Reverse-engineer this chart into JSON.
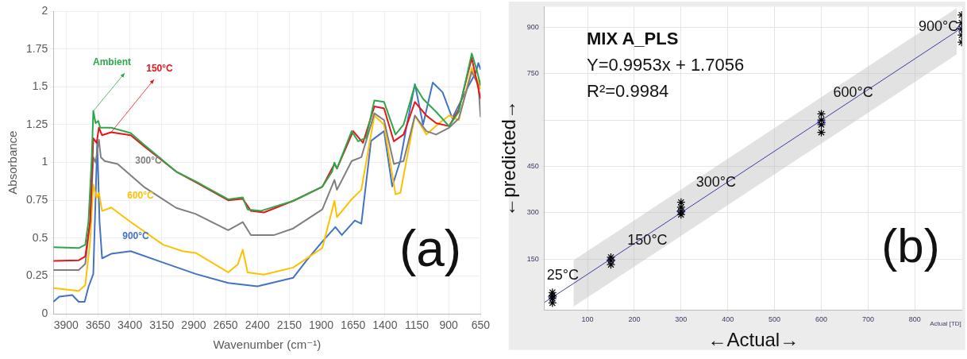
{
  "chart_data": [
    {
      "type": "line",
      "xlabel": "Wavenumber (cm⁻¹)",
      "ylabel": "Absorbance",
      "xlim": [
        4000,
        650
      ],
      "xticks": [
        3900,
        3650,
        3400,
        3150,
        2900,
        2650,
        2400,
        2150,
        1900,
        1650,
        1400,
        1150,
        900,
        650
      ],
      "ylim": [
        0,
        2
      ],
      "yticks": [
        0,
        0.25,
        0.5,
        0.75,
        1,
        1.25,
        1.5,
        1.75,
        2
      ],
      "grid": true,
      "marker": "none",
      "annotations": [
        "(a)"
      ],
      "series": [
        {
          "name": "Ambient",
          "color": "#2ca84a",
          "x": [
            4000,
            3801,
            3750,
            3725,
            3699,
            3687,
            3669,
            3648,
            3633,
            3547,
            3394,
            3292,
            3037,
            2884,
            2629,
            2515,
            2477,
            2375,
            2120,
            1891,
            1814,
            1796,
            1776,
            1661,
            1610,
            1547,
            1483,
            1407,
            1317,
            1254,
            1165,
            1101,
            999,
            897,
            821,
            719,
            680,
            650
          ],
          "values": [
            0.44,
            0.435,
            0.457,
            0.61,
            1.035,
            1.34,
            1.26,
            1.275,
            1.23,
            1.23,
            1.195,
            1.12,
            0.94,
            0.875,
            0.757,
            0.77,
            0.69,
            0.68,
            0.746,
            0.84,
            0.94,
            1.0,
            0.96,
            1.207,
            1.14,
            1.164,
            1.41,
            1.4,
            1.185,
            1.25,
            1.51,
            1.42,
            1.335,
            1.24,
            1.335,
            1.72,
            1.61,
            1.51
          ]
        },
        {
          "name": "150°C",
          "color": "#e8141b",
          "x": [
            4000,
            3801,
            3750,
            3712,
            3687,
            3661,
            3643,
            3618,
            3547,
            3394,
            3292,
            3037,
            2884,
            2629,
            2515,
            2451,
            2349,
            2120,
            1891,
            1796,
            1776,
            1649,
            1572,
            1483,
            1407,
            1330,
            1254,
            1165,
            1075,
            999,
            897,
            821,
            719,
            650
          ],
          "values": [
            0.35,
            0.354,
            0.38,
            0.61,
            1.16,
            1.13,
            1.23,
            1.18,
            1.2,
            1.18,
            1.11,
            0.94,
            0.87,
            0.75,
            0.76,
            0.68,
            0.67,
            0.746,
            0.84,
            0.99,
            0.96,
            1.207,
            1.13,
            1.37,
            1.357,
            1.14,
            1.185,
            1.4,
            1.31,
            1.26,
            1.24,
            1.35,
            1.69,
            1.42
          ]
        },
        {
          "name": "300°C",
          "color": "#7f7f7f",
          "x": [
            4000,
            3801,
            3750,
            3712,
            3687,
            3669,
            3643,
            3628,
            3598,
            3496,
            3292,
            3037,
            2884,
            2629,
            2515,
            2451,
            2273,
            2120,
            1891,
            1796,
            1776,
            1661,
            1585,
            1483,
            1407,
            1330,
            1254,
            1165,
            1075,
            999,
            897,
            821,
            719,
            667,
            650
          ],
          "values": [
            0.29,
            0.29,
            0.33,
            0.61,
            1.035,
            1.0,
            1.15,
            1.035,
            1.01,
            0.99,
            0.84,
            0.7,
            0.66,
            0.553,
            0.607,
            0.52,
            0.52,
            0.564,
            0.69,
            0.885,
            0.82,
            1.01,
            1.035,
            1.325,
            1.28,
            0.99,
            1.01,
            1.31,
            1.207,
            1.185,
            1.23,
            1.29,
            1.6,
            1.51,
            1.3
          ]
        },
        {
          "name": "600°C",
          "color": "#ffc000",
          "x": [
            4000,
            3801,
            3750,
            3712,
            3687,
            3661,
            3643,
            3618,
            3547,
            3394,
            3139,
            2986,
            2884,
            2629,
            2553,
            2515,
            2477,
            2349,
            2120,
            1891,
            1796,
            1776,
            1661,
            1585,
            1483,
            1407,
            1317,
            1279,
            1165,
            1075,
            974,
            897,
            821,
            719,
            667,
            650
          ],
          "values": [
            0.17,
            0.152,
            0.19,
            0.478,
            0.853,
            0.767,
            0.8,
            0.68,
            0.703,
            0.607,
            0.457,
            0.414,
            0.403,
            0.274,
            0.328,
            0.424,
            0.274,
            0.259,
            0.306,
            0.435,
            0.746,
            0.639,
            0.757,
            0.82,
            1.31,
            1.25,
            0.79,
            0.8,
            1.31,
            1.185,
            1.26,
            1.31,
            1.28,
            1.625,
            1.53,
            1.485
          ]
        },
        {
          "name": "900°C",
          "color": "#4472c4",
          "x": [
            4000,
            3954,
            3852,
            3801,
            3755,
            3725,
            3687,
            3656,
            3638,
            3618,
            3547,
            3394,
            3139,
            2884,
            2629,
            2400,
            2120,
            2018,
            1891,
            1789,
            1738,
            1636,
            1585,
            1509,
            1407,
            1343,
            1279,
            1228,
            1165,
            1101,
            1025,
            948,
            872,
            808,
            744,
            688,
            667,
            650
          ],
          "values": [
            0.08,
            0.114,
            0.124,
            0.08,
            0.08,
            0.178,
            0.264,
            1.14,
            0.607,
            0.367,
            0.397,
            0.414,
            0.339,
            0.264,
            0.204,
            0.182,
            0.238,
            0.349,
            0.478,
            0.574,
            0.521,
            0.617,
            0.596,
            1.143,
            1.207,
            0.842,
            1.014,
            1.25,
            1.518,
            1.25,
            1.528,
            1.464,
            1.293,
            1.4,
            1.507,
            1.593,
            1.657,
            1.614
          ]
        }
      ]
    },
    {
      "type": "scatter",
      "xlabel": "←Actual→",
      "ylabel": "←predicted→",
      "xlim": [
        8,
        901
      ],
      "xticks": [
        100,
        200,
        300,
        400,
        500,
        600,
        700,
        800
      ],
      "ylim": [
        -15,
        967
      ],
      "yticks": [
        150,
        300,
        450,
        {
          "value": 600,
          "label": null
        },
        750,
        900
      ],
      "grid": true,
      "annotations": [
        "MIX A_PLS",
        "Y=0.9953x + 1.7056",
        "R²=0.9984",
        {
          "text": "25°C",
          "x": 25,
          "y": 25
        },
        {
          "text": "150°C",
          "x": 150,
          "y": 145
        },
        {
          "text": "300°C",
          "x": 300,
          "y": 310
        },
        {
          "text": "600°C",
          "x": 600,
          "y": 590
        },
        {
          "text": "900°C",
          "x": 900,
          "y": 900
        },
        "(b)",
        "Actual [TD]"
      ],
      "series": [
        {
          "color": "#000000",
          "marker": "cross",
          "x": [
            25,
            25,
            25,
            25,
            150,
            150,
            150,
            300,
            300,
            300,
            300,
            600,
            600,
            600,
            600,
            900,
            900,
            900,
            900,
            900
          ],
          "values": [
            8,
            22,
            32,
            42,
            132,
            145,
            156,
            294,
            305,
            318,
            334,
            560,
            585,
            600,
            620,
            852,
            875,
            895,
            915,
            940
          ]
        },
        {
          "color": "#4b4bd0",
          "marker": "diamond",
          "x": [
            25,
            150,
            300,
            600,
            900
          ],
          "values": [
            28,
            146,
            305,
            592,
            900
          ]
        },
        {
          "type": "line",
          "color": "#3c3ca8",
          "marker": "none",
          "x": [
            8,
            70,
            890,
            901
          ],
          "values": [
            10,
            71,
            888,
            899
          ],
          "lower": [
            null,
            -4,
            813,
            null
          ],
          "upper": [
            null,
            146,
            963,
            null
          ]
        }
      ]
    }
  ]
}
